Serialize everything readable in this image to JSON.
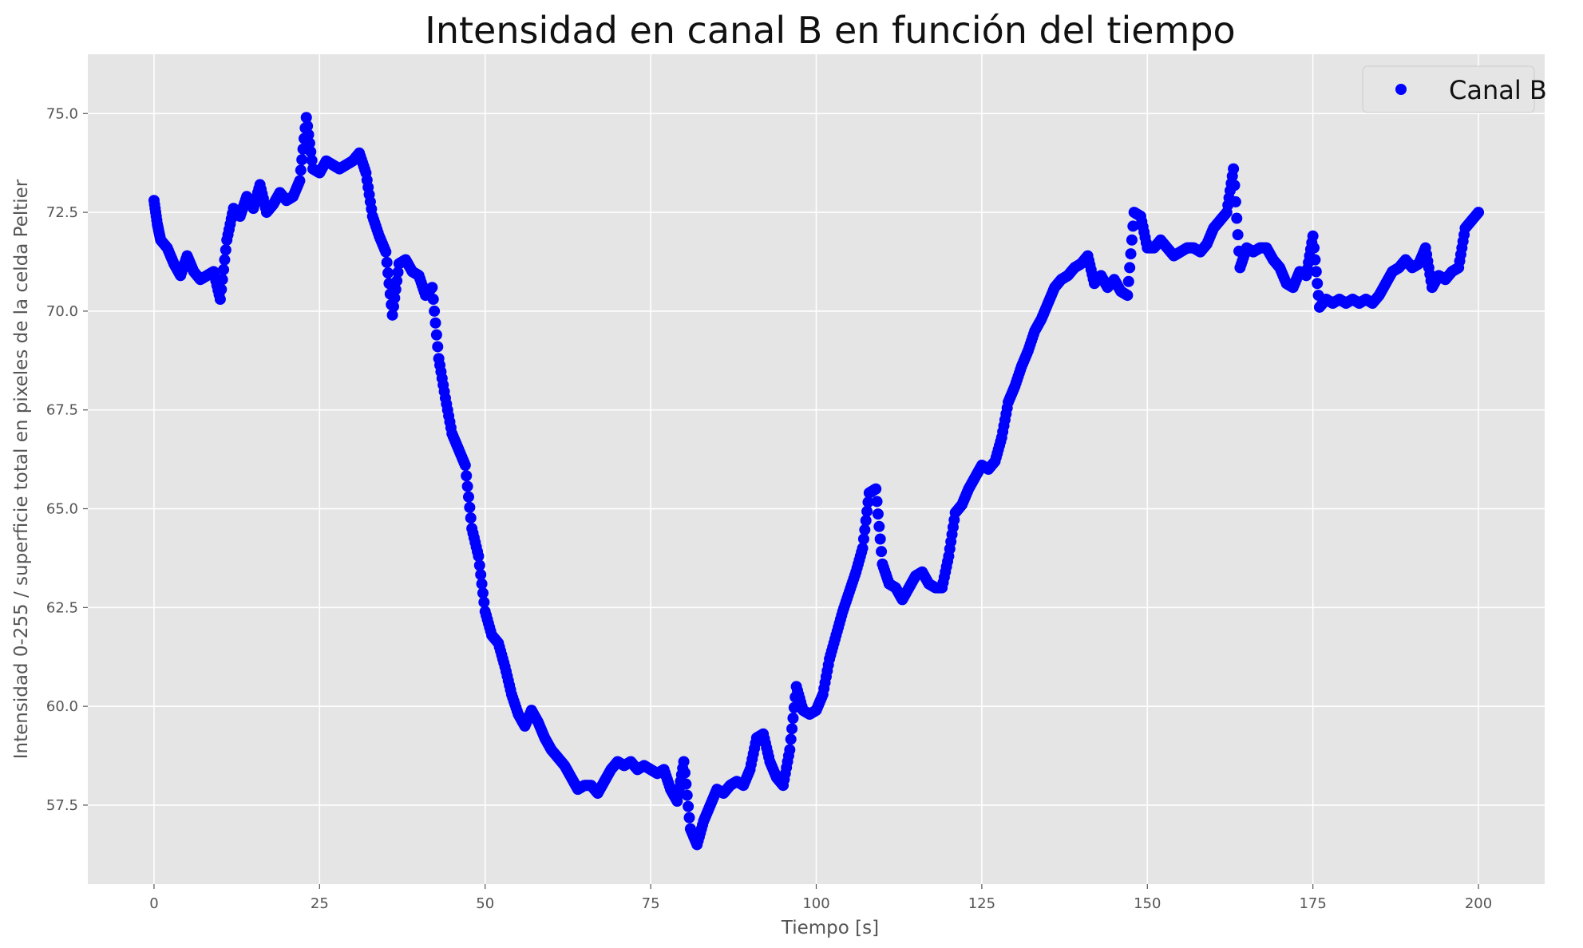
{
  "chart_data": {
    "type": "scatter",
    "title": "Intensidad en canal B en función del tiempo",
    "xlabel": "Tiempo [s]",
    "ylabel": "Intensidad 0-255 / superficie total en pixeles de la celda Peltier",
    "xlim": [
      -10,
      210
    ],
    "ylim": [
      55.5,
      76.5
    ],
    "xticks": [
      0,
      25,
      50,
      75,
      100,
      125,
      150,
      175,
      200
    ],
    "xtick_labels": [
      "0",
      "25",
      "50",
      "75",
      "100",
      "125",
      "150",
      "175",
      "200"
    ],
    "yticks": [
      57.5,
      60.0,
      62.5,
      65.0,
      67.5,
      70.0,
      72.5,
      75.0
    ],
    "ytick_labels": [
      "57.5",
      "60.0",
      "62.5",
      "65.0",
      "67.5",
      "70.0",
      "72.5",
      "75.0"
    ],
    "grid": true,
    "legend_position": "top-right",
    "background_color": "#e5e5e5",
    "grid_color": "#ffffff",
    "series": [
      {
        "name": "Canal B",
        "color": "#0000ff",
        "marker": "circle",
        "points": [
          [
            0,
            72.8
          ],
          [
            0.5,
            72.2
          ],
          [
            1,
            71.8
          ],
          [
            2,
            71.6
          ],
          [
            3,
            71.2
          ],
          [
            4,
            70.9
          ],
          [
            5,
            71.4
          ],
          [
            6,
            71.0
          ],
          [
            7,
            70.8
          ],
          [
            8,
            70.9
          ],
          [
            9,
            71.0
          ],
          [
            10,
            70.3
          ],
          [
            11,
            71.8
          ],
          [
            12,
            72.6
          ],
          [
            13,
            72.4
          ],
          [
            14,
            72.9
          ],
          [
            15,
            72.6
          ],
          [
            16,
            73.2
          ],
          [
            17,
            72.5
          ],
          [
            18,
            72.7
          ],
          [
            19,
            73.0
          ],
          [
            20,
            72.8
          ],
          [
            21,
            72.9
          ],
          [
            22,
            73.3
          ],
          [
            23,
            74.9
          ],
          [
            24,
            73.6
          ],
          [
            25,
            73.5
          ],
          [
            26,
            73.8
          ],
          [
            27,
            73.7
          ],
          [
            28,
            73.6
          ],
          [
            29,
            73.7
          ],
          [
            30,
            73.8
          ],
          [
            31,
            74.0
          ],
          [
            32,
            73.5
          ],
          [
            33,
            72.4
          ],
          [
            34,
            71.9
          ],
          [
            35,
            71.5
          ],
          [
            36,
            69.9
          ],
          [
            37,
            71.2
          ],
          [
            38,
            71.3
          ],
          [
            39,
            71.0
          ],
          [
            40,
            70.9
          ],
          [
            41,
            70.4
          ],
          [
            42,
            70.6
          ],
          [
            43,
            68.8
          ],
          [
            44,
            67.8
          ],
          [
            45,
            66.9
          ],
          [
            46,
            66.5
          ],
          [
            47,
            66.1
          ],
          [
            48,
            64.5
          ],
          [
            49,
            63.8
          ],
          [
            50,
            62.4
          ],
          [
            51,
            61.8
          ],
          [
            52,
            61.6
          ],
          [
            53,
            61.0
          ],
          [
            54,
            60.3
          ],
          [
            55,
            59.8
          ],
          [
            56,
            59.5
          ],
          [
            57,
            59.9
          ],
          [
            58,
            59.6
          ],
          [
            59,
            59.2
          ],
          [
            60,
            58.9
          ],
          [
            61,
            58.7
          ],
          [
            62,
            58.5
          ],
          [
            63,
            58.2
          ],
          [
            64,
            57.9
          ],
          [
            65,
            58.0
          ],
          [
            66,
            58.0
          ],
          [
            67,
            57.8
          ],
          [
            68,
            58.1
          ],
          [
            69,
            58.4
          ],
          [
            70,
            58.6
          ],
          [
            71,
            58.5
          ],
          [
            72,
            58.6
          ],
          [
            73,
            58.4
          ],
          [
            74,
            58.5
          ],
          [
            75,
            58.4
          ],
          [
            76,
            58.3
          ],
          [
            77,
            58.4
          ],
          [
            78,
            57.9
          ],
          [
            79,
            57.6
          ],
          [
            80,
            58.6
          ],
          [
            81,
            56.9
          ],
          [
            82,
            56.5
          ],
          [
            83,
            57.1
          ],
          [
            84,
            57.5
          ],
          [
            85,
            57.9
          ],
          [
            86,
            57.8
          ],
          [
            87,
            58.0
          ],
          [
            88,
            58.1
          ],
          [
            89,
            58.0
          ],
          [
            90,
            58.4
          ],
          [
            91,
            59.2
          ],
          [
            92,
            59.3
          ],
          [
            93,
            58.6
          ],
          [
            94,
            58.2
          ],
          [
            95,
            58.0
          ],
          [
            96,
            58.9
          ],
          [
            97,
            60.5
          ],
          [
            98,
            59.9
          ],
          [
            99,
            59.8
          ],
          [
            100,
            59.9
          ],
          [
            101,
            60.3
          ],
          [
            102,
            61.2
          ],
          [
            103,
            61.8
          ],
          [
            104,
            62.4
          ],
          [
            105,
            62.9
          ],
          [
            106,
            63.4
          ],
          [
            107,
            64.0
          ],
          [
            108,
            65.4
          ],
          [
            109,
            65.5
          ],
          [
            110,
            63.6
          ],
          [
            111,
            63.1
          ],
          [
            112,
            63.0
          ],
          [
            113,
            62.7
          ],
          [
            114,
            63.0
          ],
          [
            115,
            63.3
          ],
          [
            116,
            63.4
          ],
          [
            117,
            63.1
          ],
          [
            118,
            63.0
          ],
          [
            119,
            63.0
          ],
          [
            120,
            63.8
          ],
          [
            121,
            64.9
          ],
          [
            122,
            65.1
          ],
          [
            123,
            65.5
          ],
          [
            124,
            65.8
          ],
          [
            125,
            66.1
          ],
          [
            126,
            66.0
          ],
          [
            127,
            66.2
          ],
          [
            128,
            66.8
          ],
          [
            129,
            67.7
          ],
          [
            130,
            68.1
          ],
          [
            131,
            68.6
          ],
          [
            132,
            69.0
          ],
          [
            133,
            69.5
          ],
          [
            134,
            69.8
          ],
          [
            135,
            70.2
          ],
          [
            136,
            70.6
          ],
          [
            137,
            70.8
          ],
          [
            138,
            70.9
          ],
          [
            139,
            71.1
          ],
          [
            140,
            71.2
          ],
          [
            141,
            71.4
          ],
          [
            142,
            70.7
          ],
          [
            143,
            70.9
          ],
          [
            144,
            70.6
          ],
          [
            145,
            70.8
          ],
          [
            146,
            70.5
          ],
          [
            147,
            70.4
          ],
          [
            148,
            72.5
          ],
          [
            149,
            72.4
          ],
          [
            150,
            71.6
          ],
          [
            151,
            71.6
          ],
          [
            152,
            71.8
          ],
          [
            153,
            71.6
          ],
          [
            154,
            71.4
          ],
          [
            155,
            71.5
          ],
          [
            156,
            71.6
          ],
          [
            157,
            71.6
          ],
          [
            158,
            71.5
          ],
          [
            159,
            71.7
          ],
          [
            160,
            72.1
          ],
          [
            161,
            72.3
          ],
          [
            162,
            72.5
          ],
          [
            163,
            73.6
          ],
          [
            164,
            71.1
          ],
          [
            165,
            71.6
          ],
          [
            166,
            71.5
          ],
          [
            167,
            71.6
          ],
          [
            168,
            71.6
          ],
          [
            169,
            71.3
          ],
          [
            170,
            71.1
          ],
          [
            171,
            70.7
          ],
          [
            172,
            70.6
          ],
          [
            173,
            71.0
          ],
          [
            174,
            70.9
          ],
          [
            175,
            71.9
          ],
          [
            176,
            70.1
          ],
          [
            177,
            70.3
          ],
          [
            178,
            70.2
          ],
          [
            179,
            70.3
          ],
          [
            180,
            70.2
          ],
          [
            181,
            70.3
          ],
          [
            182,
            70.2
          ],
          [
            183,
            70.3
          ],
          [
            184,
            70.2
          ],
          [
            185,
            70.4
          ],
          [
            186,
            70.7
          ],
          [
            187,
            71.0
          ],
          [
            188,
            71.1
          ],
          [
            189,
            71.3
          ],
          [
            190,
            71.1
          ],
          [
            191,
            71.2
          ],
          [
            192,
            71.6
          ],
          [
            193,
            70.6
          ],
          [
            194,
            70.9
          ],
          [
            195,
            70.8
          ],
          [
            196,
            71.0
          ],
          [
            197,
            71.1
          ],
          [
            198,
            72.1
          ],
          [
            199,
            72.3
          ],
          [
            200,
            72.5
          ]
        ]
      }
    ]
  }
}
